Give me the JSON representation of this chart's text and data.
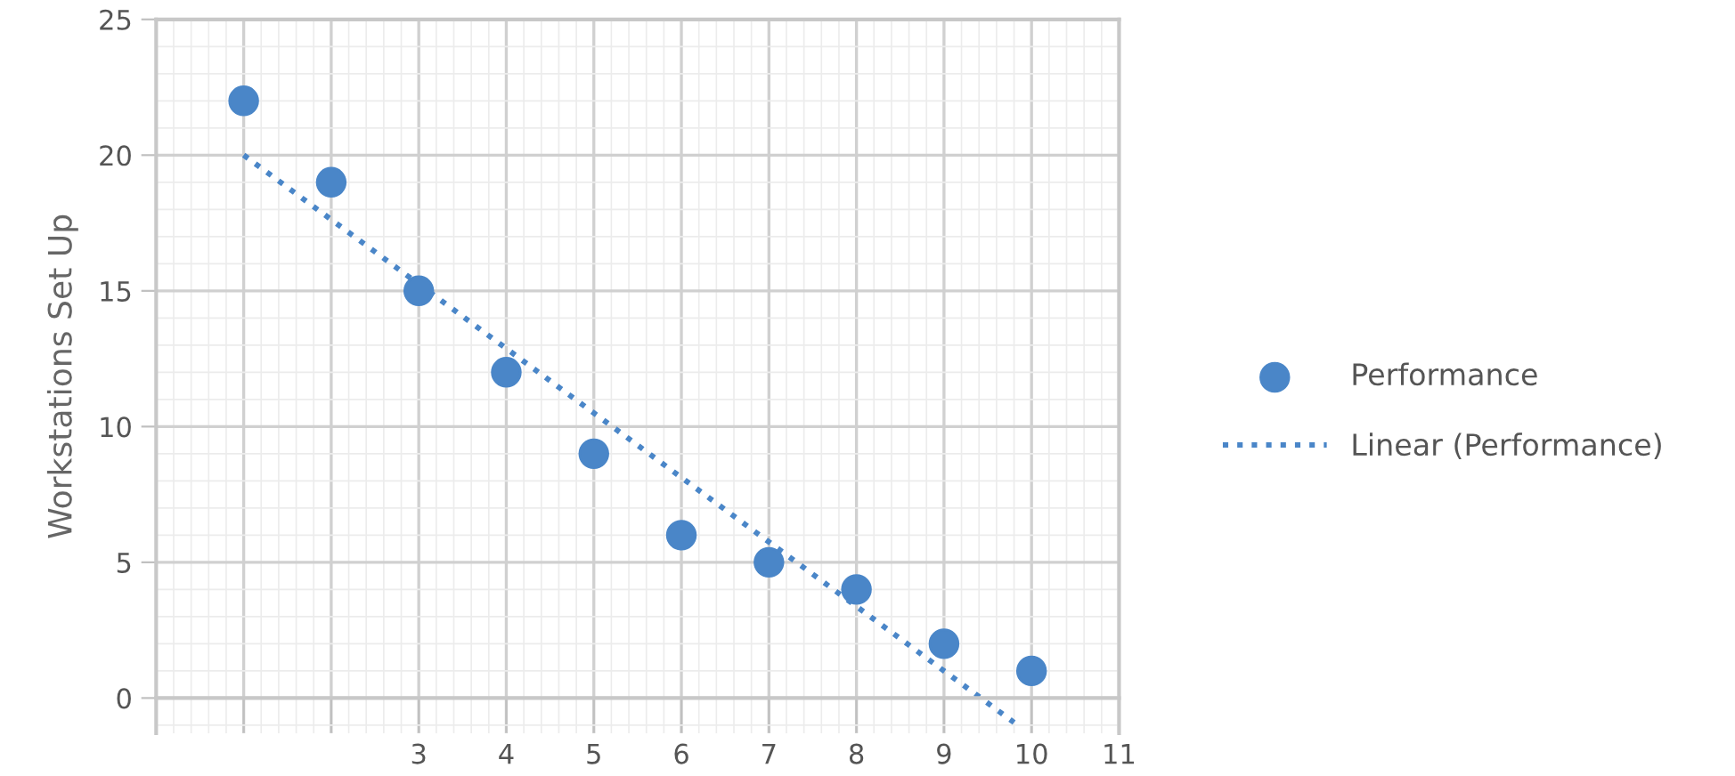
{
  "chart_data": {
    "type": "scatter",
    "ylabel": "Workstations Set Up",
    "x": [
      1,
      2,
      3,
      4,
      5,
      6,
      7,
      8,
      9,
      10
    ],
    "series": [
      {
        "name": "Performance",
        "color": "#4a86c8",
        "marker": "circle",
        "values": [
          22,
          19,
          15,
          12,
          9,
          6,
          5,
          4,
          2,
          1
        ]
      },
      {
        "name": "Linear (Performance)",
        "type": "line",
        "color": "#4a86c8",
        "line_style": "dotted",
        "marker": "none",
        "x": [
          1,
          9.8
        ],
        "values": [
          20,
          -0.9
        ]
      }
    ],
    "xlim": [
      0,
      11
    ],
    "ylim": [
      -1.3,
      25
    ],
    "xticks": [
      {
        "value": 0,
        "label": null
      },
      {
        "value": 1,
        "label": null
      },
      {
        "value": 2,
        "label": null
      },
      3,
      4,
      5,
      6,
      7,
      8,
      9,
      10,
      11
    ],
    "yticks": [
      0,
      5,
      10,
      15,
      20,
      25
    ],
    "grid": true,
    "legend": "right"
  }
}
